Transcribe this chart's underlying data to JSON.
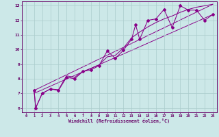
{
  "xlabel": "Windchill (Refroidissement éolien,°C)",
  "bg_color": "#cce8e8",
  "grid_color": "#aacccc",
  "line_color": "#880088",
  "xlim": [
    -0.5,
    23.5
  ],
  "ylim": [
    5.7,
    13.3
  ],
  "xticks": [
    0,
    1,
    2,
    3,
    4,
    5,
    6,
    7,
    8,
    9,
    10,
    11,
    12,
    13,
    14,
    15,
    16,
    17,
    18,
    19,
    20,
    21,
    22,
    23
  ],
  "yticks": [
    6,
    7,
    8,
    9,
    10,
    11,
    12,
    13
  ],
  "series1": [
    [
      1,
      7.2
    ],
    [
      1.2,
      6.0
    ],
    [
      2,
      7.0
    ],
    [
      3,
      7.3
    ],
    [
      4,
      7.2
    ],
    [
      5,
      8.1
    ],
    [
      6,
      8.0
    ],
    [
      7,
      8.5
    ],
    [
      8,
      8.6
    ],
    [
      9,
      8.9
    ],
    [
      10,
      9.9
    ],
    [
      11,
      9.4
    ],
    [
      12,
      9.95
    ],
    [
      13,
      10.7
    ],
    [
      13.5,
      11.7
    ],
    [
      14,
      10.7
    ],
    [
      15,
      12.0
    ],
    [
      16,
      12.1
    ],
    [
      17,
      12.75
    ],
    [
      18,
      11.5
    ],
    [
      19,
      13.0
    ],
    [
      20,
      12.7
    ],
    [
      21,
      12.7
    ],
    [
      22,
      12.0
    ],
    [
      23,
      12.4
    ]
  ],
  "series2": [
    [
      1,
      7.2
    ],
    [
      1.2,
      6.0
    ],
    [
      2,
      7.0
    ],
    [
      3,
      7.3
    ],
    [
      4,
      7.25
    ],
    [
      5,
      8.2
    ],
    [
      6,
      8.1
    ],
    [
      7,
      8.5
    ],
    [
      8,
      8.7
    ],
    [
      9,
      8.95
    ],
    [
      10,
      9.5
    ],
    [
      11,
      9.6
    ],
    [
      12,
      10.1
    ],
    [
      13,
      10.8
    ],
    [
      14,
      11.2
    ],
    [
      15,
      11.55
    ],
    [
      16,
      11.85
    ],
    [
      17,
      12.1
    ],
    [
      18,
      12.3
    ],
    [
      19,
      12.55
    ],
    [
      20,
      12.75
    ],
    [
      21,
      12.9
    ],
    [
      22,
      13.0
    ],
    [
      23,
      13.1
    ]
  ],
  "line3": [
    [
      1,
      7.2
    ],
    [
      23,
      13.1
    ]
  ],
  "line4": [
    [
      1,
      7.0
    ],
    [
      23,
      12.4
    ]
  ]
}
